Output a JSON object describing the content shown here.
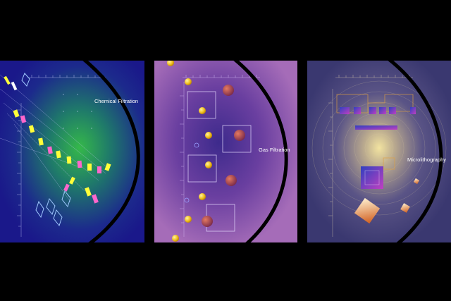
{
  "panels": [
    {
      "label": "Chemical Filtration"
    },
    {
      "label": "Gas Filtration"
    },
    {
      "label": "Microlithography"
    }
  ],
  "colors": {
    "background": "#000000",
    "chemical_base": "#1c1a8a",
    "chemical_glow": "#2fb04a",
    "gas_base": "#9a5fb0",
    "gas_core": "#4a2a8a",
    "micro_base": "#3e3c72",
    "micro_glow": "#e6d79a",
    "arc": "#000000"
  },
  "icons": [
    "filter-fragment-icon",
    "particle-icon",
    "square-frame-icon",
    "chip-block-icon"
  ]
}
